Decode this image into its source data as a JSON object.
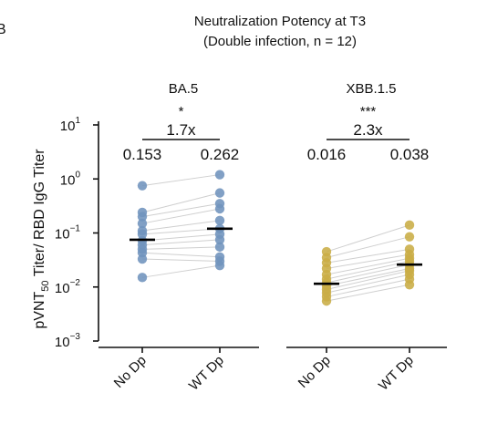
{
  "panel_letter": "B",
  "figure": {
    "title_line1": "Neutralization Potency at T3",
    "title_line2": "(Double infection, n = 12)",
    "ylabel_main": "pVNT",
    "ylabel_sub": "50",
    "ylabel_rest": " Titer/ RBD IgG Titer"
  },
  "chart_data": [
    {
      "type": "scatter",
      "title": "BA.5",
      "y_scale": "log10",
      "ylim": [
        0.001,
        10
      ],
      "y_ticks": [
        {
          "exp": "1",
          "value": 10
        },
        {
          "exp": "0",
          "value": 1
        },
        {
          "exp": "−1",
          "value": 0.1
        },
        {
          "exp": "−2",
          "value": 0.01
        },
        {
          "exp": "−3",
          "value": 0.001
        }
      ],
      "tick_base": "10",
      "categories": [
        "No Dp",
        "WT Dp"
      ],
      "color": "#6f93bd",
      "paired": true,
      "pairs": [
        [
          0.75,
          1.2
        ],
        [
          0.24,
          0.55
        ],
        [
          0.2,
          0.35
        ],
        [
          0.15,
          0.28
        ],
        [
          0.11,
          0.17
        ],
        [
          0.095,
          0.12
        ],
        [
          0.072,
          0.095
        ],
        [
          0.06,
          0.075
        ],
        [
          0.05,
          0.055
        ],
        [
          0.043,
          0.036
        ],
        [
          0.033,
          0.03
        ],
        [
          0.015,
          0.025
        ]
      ],
      "medians": [
        0.075,
        0.12
      ],
      "annotation": {
        "significance": "*",
        "fold_change": "1.7x",
        "left_value": "0.153",
        "right_value": "0.262"
      }
    },
    {
      "type": "scatter",
      "title": "XBB.1.5",
      "y_scale": "log10",
      "ylim": [
        0.001,
        10
      ],
      "categories": [
        "No Dp",
        "WT Dp"
      ],
      "color": "#c9ad45",
      "paired": true,
      "pairs": [
        [
          0.045,
          0.14
        ],
        [
          0.035,
          0.085
        ],
        [
          0.028,
          0.05
        ],
        [
          0.022,
          0.04
        ],
        [
          0.017,
          0.034
        ],
        [
          0.014,
          0.03
        ],
        [
          0.012,
          0.026
        ],
        [
          0.0105,
          0.022
        ],
        [
          0.009,
          0.02
        ],
        [
          0.0078,
          0.017
        ],
        [
          0.0066,
          0.014
        ],
        [
          0.0055,
          0.011
        ]
      ],
      "medians": [
        0.0115,
        0.026
      ],
      "annotation": {
        "significance": "***",
        "fold_change": "2.3x",
        "left_value": "0.016",
        "right_value": "0.038"
      }
    }
  ]
}
